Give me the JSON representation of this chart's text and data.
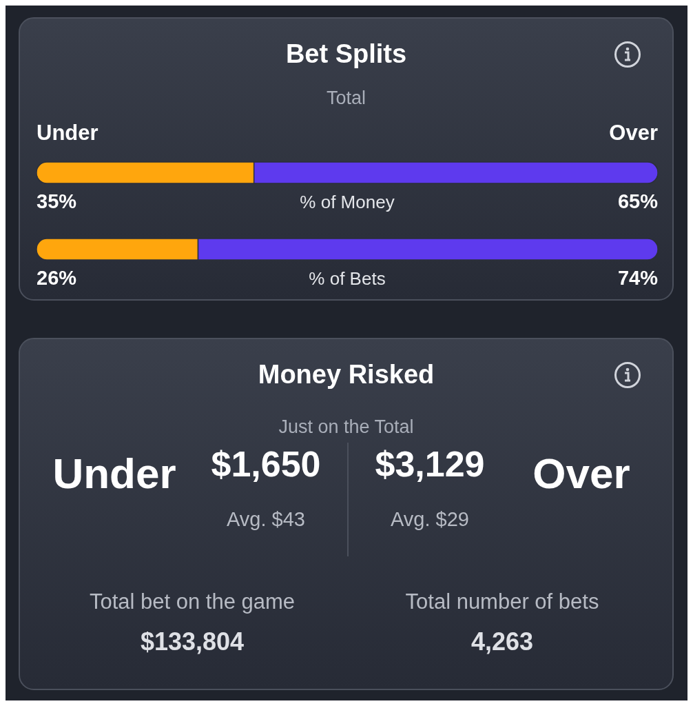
{
  "chart_data": [
    {
      "type": "bar",
      "orientation": "horizontal",
      "stacked": true,
      "title": "Bet Splits",
      "subtitle": "Total",
      "categories": [
        "% of Money",
        "% of Bets"
      ],
      "series": [
        {
          "name": "Under",
          "color": "#ffa60d",
          "values": [
            35,
            26
          ],
          "value_labels": [
            "35%",
            "26%"
          ]
        },
        {
          "name": "Over",
          "color": "#5e3aee",
          "values": [
            65,
            74
          ],
          "value_labels": [
            "65%",
            "74%"
          ]
        }
      ]
    },
    {
      "type": "other",
      "title": "Money Risked",
      "subtitle": "Just on the Total",
      "annotations": [
        "Under",
        "$1,650",
        "Avg. $43",
        "$3,129",
        "Avg. $29",
        "Over",
        "Total bet on the game",
        "$133,804",
        "Total number of bets",
        "4,263"
      ]
    }
  ]
}
